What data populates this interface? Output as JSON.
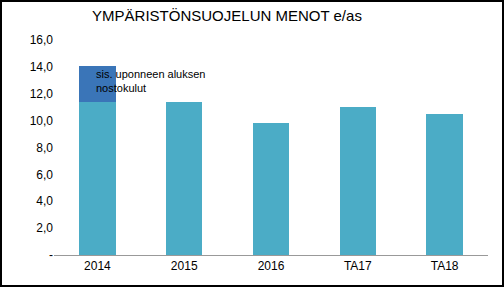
{
  "chart_data": {
    "type": "bar",
    "title": "YMPÄRISTÖNSUOJELUN MENOT e/as",
    "categories": [
      "2014",
      "2015",
      "2016",
      "TA17",
      "TA18"
    ],
    "stacked": true,
    "series": [
      {
        "color": "#4bacc6",
        "values": [
          11.4,
          11.4,
          9.8,
          11.0,
          10.5
        ]
      },
      {
        "color": "#3a75b8",
        "values": [
          2.7,
          null,
          null,
          null,
          null
        ]
      }
    ],
    "annotations": [
      {
        "category": "2014",
        "lines": [
          "sis. uponneen aluksen",
          "nostokulut"
        ]
      }
    ],
    "ylim": [
      0,
      16
    ],
    "yticks": [
      {
        "value": 0,
        "label": "-"
      },
      {
        "value": 2,
        "label": "2,0"
      },
      {
        "value": 4,
        "label": "4,0"
      },
      {
        "value": 6,
        "label": "6,0"
      },
      {
        "value": 8,
        "label": "8,0"
      },
      {
        "value": 10,
        "label": "10,0"
      },
      {
        "value": 12,
        "label": "12,0"
      },
      {
        "value": 14,
        "label": "14,0"
      },
      {
        "value": 16,
        "label": "16,0"
      }
    ],
    "grid": false
  }
}
